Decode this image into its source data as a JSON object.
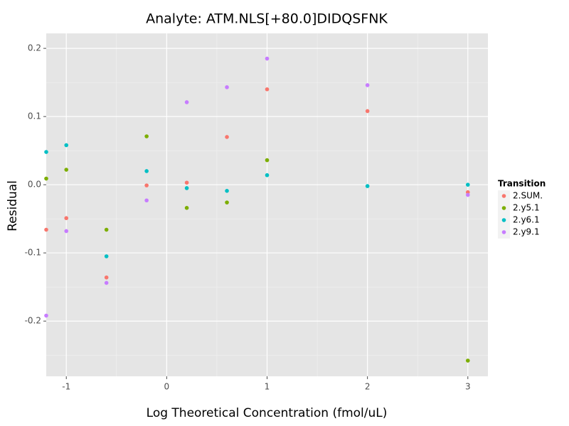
{
  "chart_data": {
    "type": "scatter",
    "title": "Analyte: ATM.NLS[+80.0]DIDQSFNK",
    "x_label": "Log Theoretical Concentration (fmol/uL)",
    "y_label": "Residual",
    "legend_title": "Transition",
    "legend_position": "right",
    "grid": true,
    "x": [
      -1.2,
      -1,
      -0.6,
      -0.2,
      0.2,
      0.6,
      1,
      2,
      3
    ],
    "series": [
      {
        "name": "2.SUM.",
        "color": "#F8766D",
        "values": [
          -0.066,
          -0.049,
          -0.136,
          -0.001,
          0.003,
          0.07,
          0.14,
          0.108,
          -0.011
        ]
      },
      {
        "name": "2.y5.1",
        "color": "#7CAE00",
        "values": [
          0.009,
          0.022,
          -0.066,
          0.071,
          -0.034,
          -0.026,
          0.036,
          null,
          -0.258
        ]
      },
      {
        "name": "2.y6.1",
        "color": "#00BFC4",
        "values": [
          0.048,
          0.058,
          -0.105,
          0.02,
          -0.005,
          -0.009,
          0.014,
          -0.002,
          0.0
        ]
      },
      {
        "name": "2.y9.1",
        "color": "#C77CFF",
        "values": [
          -0.192,
          -0.068,
          -0.144,
          -0.023,
          0.121,
          0.143,
          0.185,
          0.146,
          -0.015
        ]
      }
    ],
    "xlim": [
      -1.2,
      3.2
    ],
    "xticks": [
      -1,
      0,
      1,
      2,
      3
    ],
    "ylim": [
      -0.281,
      0.222
    ],
    "yticks": [
      -0.2,
      -0.1,
      0.0,
      0.1,
      0.2
    ]
  }
}
